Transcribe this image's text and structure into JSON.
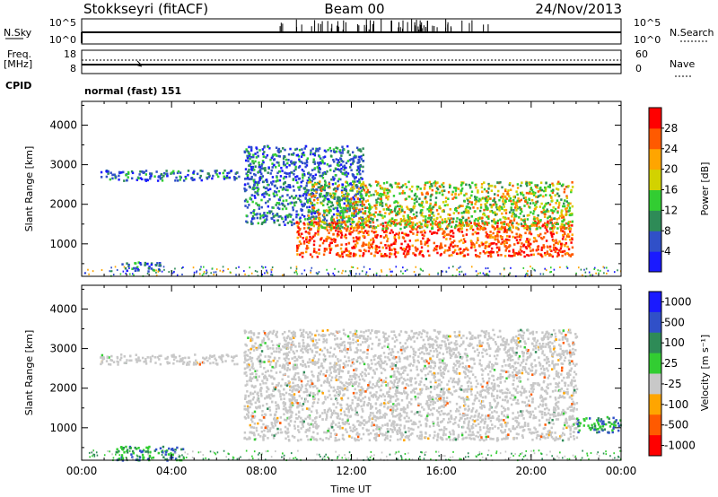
{
  "header": {
    "station": "Stokkseyri (fitACF)",
    "beam": "Beam 00",
    "date": "24/Nov/2013"
  },
  "aux": {
    "nsky_label": "N.Sky",
    "nsky_top": "10^5",
    "nsky_bottom": "10^0",
    "nsearch_label": "N.Search",
    "nsearch_top": "10^5",
    "nsearch_bottom": "10^0",
    "freq_label": "Freq.",
    "freq_unit": "[MHz]",
    "freq_top": "18",
    "freq_bottom": "8",
    "nave_label": "Nave",
    "nave_top": "60",
    "nave_bottom": "0",
    "cpid_label": "CPID",
    "cpid_value": "normal (fast) 151"
  },
  "chart_data": [
    {
      "type": "heatmap",
      "name": "power",
      "ylabel": "Slant Range [km]",
      "xlabel": "Time UT",
      "ylim": [
        180,
        4600
      ],
      "yticks": [
        "1000",
        "2000",
        "3000",
        "4000"
      ],
      "xticks": [
        "00:00",
        "04:00",
        "08:00",
        "12:00",
        "16:00",
        "20:00",
        "00:00"
      ],
      "colorbar_label": "Power [dB]",
      "colorbar_ticks": [
        "4",
        "8",
        "12",
        "16",
        "20",
        "24",
        "28"
      ],
      "colorbar_colors": [
        "#1a1aff",
        "#3050c8",
        "#2e8b57",
        "#32cd32",
        "#d2d200",
        "#ffa500",
        "#ff5a00",
        "#ff0000"
      ],
      "echo_regions": [
        {
          "t": [
            0.8,
            7.0
          ],
          "range": [
            2620,
            2880
          ],
          "level": "low"
        },
        {
          "t": [
            1.5,
            3.5
          ],
          "range": [
            330,
            560
          ],
          "level": "low"
        },
        {
          "t": [
            7.2,
            12.5
          ],
          "range": [
            1500,
            3500
          ],
          "level": "low"
        },
        {
          "t": [
            9.5,
            21.8
          ],
          "range": [
            700,
            1600
          ],
          "level": "high"
        },
        {
          "t": [
            10.0,
            21.8
          ],
          "range": [
            1400,
            2600
          ],
          "level": "medium"
        }
      ]
    },
    {
      "type": "heatmap",
      "name": "velocity",
      "ylabel": "Slant Range [km]",
      "xlabel": "Time UT",
      "ylim": [
        180,
        4600
      ],
      "yticks": [
        "1000",
        "2000",
        "3000",
        "4000"
      ],
      "xticks": [
        "00:00",
        "04:00",
        "08:00",
        "12:00",
        "16:00",
        "20:00",
        "00:00"
      ],
      "colorbar_label": "Velocity [m s⁻¹]",
      "colorbar_ticks": [
        "1000",
        "500",
        "100",
        "25",
        "-25",
        "-100",
        "-500",
        "-1000"
      ],
      "colorbar_colors": [
        "#1a1aff",
        "#3050c8",
        "#2e8b57",
        "#32cd32",
        "#c8c8c8",
        "#ffa500",
        "#ff5a00",
        "#ff0000"
      ],
      "echo_regions": [
        {
          "t": [
            0.8,
            7.0
          ],
          "range": [
            2620,
            2880
          ],
          "level": "ground"
        },
        {
          "t": [
            7.2,
            22.0
          ],
          "range": [
            700,
            3500
          ],
          "level": "ground"
        },
        {
          "t": [
            22.0,
            24.0
          ],
          "range": [
            900,
            1300
          ],
          "level": "positive"
        },
        {
          "t": [
            1.5,
            4.5
          ],
          "range": [
            200,
            550
          ],
          "level": "positive"
        }
      ]
    }
  ]
}
